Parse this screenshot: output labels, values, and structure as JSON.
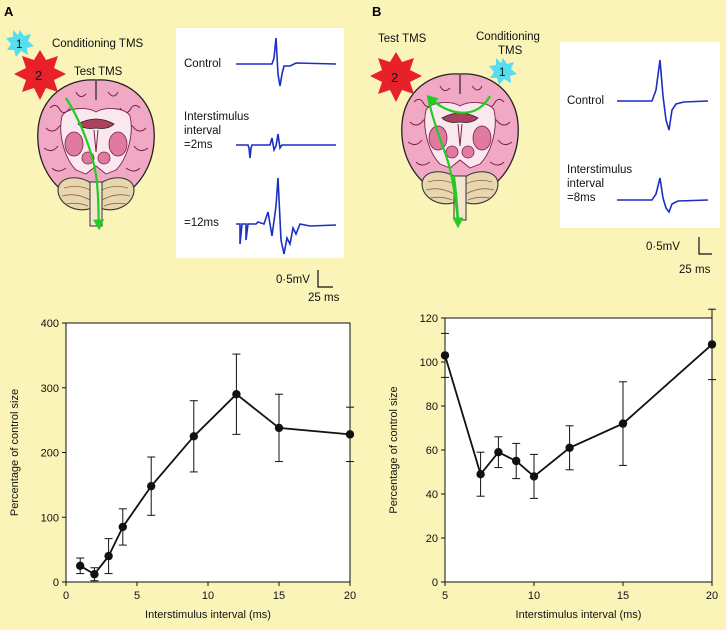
{
  "panels": {
    "A": {
      "letter": "A",
      "stim_conditioning": {
        "number": "1",
        "label": "Conditioning TMS"
      },
      "stim_test": {
        "number": "2",
        "label": "Test TMS"
      },
      "traces": {
        "control": "Control",
        "isi_line1": "Interstimulus",
        "isi_line2": "interval",
        "isi_line3": "=2ms",
        "isi_12": "=12ms"
      },
      "scale": {
        "mv": "0·5mV",
        "ms": "25 ms"
      }
    },
    "B": {
      "letter": "B",
      "stim_test": {
        "number": "2",
        "label": "Test TMS"
      },
      "stim_conditioning": {
        "number": "1",
        "label_line1": "Conditioning",
        "label_line2": "TMS"
      },
      "traces": {
        "control": "Control",
        "isi_line1": "Interstimulus",
        "isi_line2": "interval",
        "isi_line3": "=8ms"
      },
      "scale": {
        "mv": "0·5mV",
        "ms": "25 ms"
      }
    }
  },
  "colors": {
    "background": "#fbf4b8",
    "trace": "#1a2fc4",
    "pathway": "#22cc22",
    "burst_red": "#e8202a",
    "burst_cyan": "#55ddf0",
    "brain_pink": "#f0a8c4",
    "cerebellum": "#e8d6b0"
  },
  "chart_data": [
    {
      "type": "line",
      "xlabel": "Interstimulus interval (ms)",
      "ylabel": "Percentage of control size",
      "xlim": [
        0,
        20
      ],
      "ylim": [
        0,
        400
      ],
      "xticks": [
        0,
        5,
        10,
        15,
        20
      ],
      "yticks": [
        0,
        100,
        200,
        300,
        400
      ],
      "grid": false,
      "points": [
        {
          "x": 1,
          "y": 25,
          "err": 12
        },
        {
          "x": 2,
          "y": 12,
          "err": 10
        },
        {
          "x": 3,
          "y": 40,
          "err": 27
        },
        {
          "x": 4,
          "y": 85,
          "err": 28
        },
        {
          "x": 6,
          "y": 148,
          "err": 45
        },
        {
          "x": 9,
          "y": 225,
          "err": 55
        },
        {
          "x": 12,
          "y": 290,
          "err": 62
        },
        {
          "x": 15,
          "y": 238,
          "err": 52
        },
        {
          "x": 20,
          "y": 228,
          "err": 42
        }
      ]
    },
    {
      "type": "line",
      "xlabel": "Interstimulus interval (ms)",
      "ylabel": "Percentage of control size",
      "xlim": [
        5,
        20
      ],
      "ylim": [
        0,
        120
      ],
      "xticks": [
        5,
        10,
        15,
        20
      ],
      "yticks": [
        0,
        20,
        40,
        60,
        80,
        100,
        120
      ],
      "grid": false,
      "points": [
        {
          "x": 5,
          "y": 103,
          "err": 10
        },
        {
          "x": 7,
          "y": 49,
          "err": 10
        },
        {
          "x": 8,
          "y": 59,
          "err": 7
        },
        {
          "x": 9,
          "y": 55,
          "err": 8
        },
        {
          "x": 10,
          "y": 48,
          "err": 10
        },
        {
          "x": 12,
          "y": 61,
          "err": 10
        },
        {
          "x": 15,
          "y": 72,
          "err": 19
        },
        {
          "x": 20,
          "y": 108,
          "err": 16
        }
      ]
    }
  ]
}
